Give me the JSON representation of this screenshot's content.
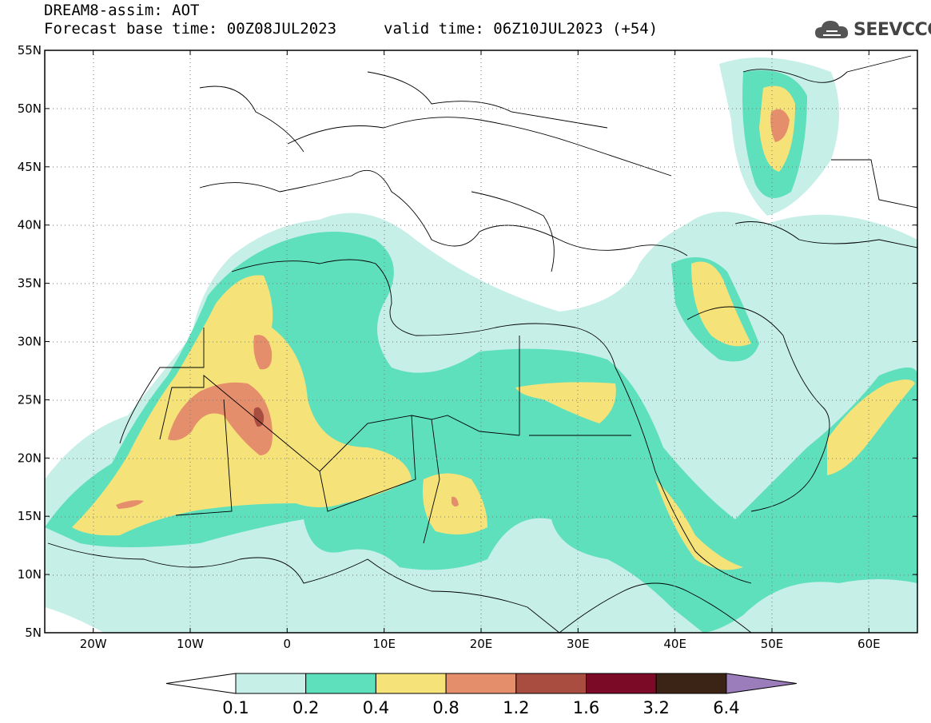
{
  "header": {
    "line1": "DREAM8-assim: AOT",
    "line2": "Forecast base time: 00Z08JUL2023",
    "valid": "valid time: 06Z10JUL2023 (+54)"
  },
  "logo": {
    "text": "SEEVCCC",
    "icon": "cloud-icon"
  },
  "map": {
    "lat_labels": [
      "55N",
      "50N",
      "45N",
      "40N",
      "35N",
      "30N",
      "25N",
      "20N",
      "15N",
      "10N",
      "5N"
    ],
    "lon_labels": [
      "20W",
      "10W",
      "0",
      "10E",
      "20E",
      "30E",
      "40E",
      "50E",
      "60E"
    ],
    "lat_range": [
      5,
      55
    ],
    "lon_range": [
      -25,
      65
    ],
    "grid": "dotted"
  },
  "legend": {
    "labels": [
      "0.1",
      "0.2",
      "0.4",
      "0.8",
      "1.2",
      "1.6",
      "3.2",
      "6.4"
    ],
    "colors": [
      "#c6efe8",
      "#5fe0bc",
      "#f5e37a",
      "#e58e6c",
      "#a84d40",
      "#7a0a26",
      "#3b2416",
      "#9b7dbb"
    ],
    "low_color": "#ffffff"
  }
}
